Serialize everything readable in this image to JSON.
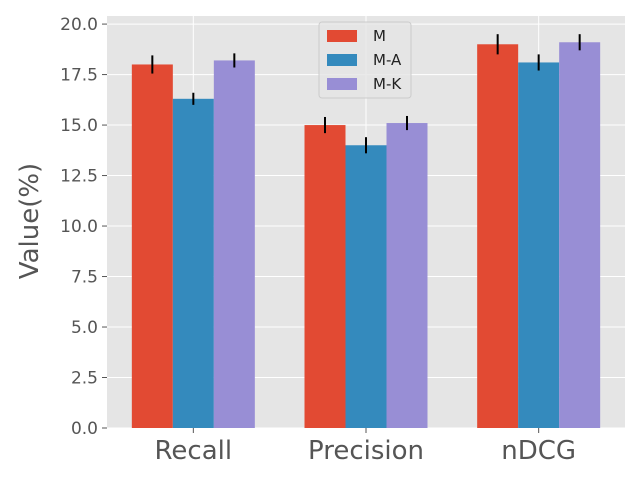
{
  "chart_data": {
    "type": "bar",
    "title": "",
    "xlabel": "",
    "ylabel": "Value(%)",
    "categories": [
      "Recall",
      "Precision",
      "nDCG"
    ],
    "series": [
      {
        "name": "M",
        "color": "#E24A33",
        "values": [
          18.0,
          15.0,
          19.0
        ],
        "errors": [
          0.45,
          0.4,
          0.5
        ]
      },
      {
        "name": "M-A",
        "color": "#348ABD",
        "values": [
          16.3,
          14.0,
          18.1
        ],
        "errors": [
          0.3,
          0.4,
          0.4
        ]
      },
      {
        "name": "M-K",
        "color": "#988ED5",
        "values": [
          18.2,
          15.1,
          19.1
        ],
        "errors": [
          0.35,
          0.35,
          0.4
        ]
      }
    ],
    "ylim": [
      0,
      20.4
    ],
    "yticks": [
      "0.0",
      "2.5",
      "5.0",
      "7.5",
      "10.0",
      "12.5",
      "15.0",
      "17.5",
      "20.0"
    ],
    "grid": true,
    "legend_position": "top-center",
    "background_color": "#E5E5E5",
    "grid_color": "#FFFFFF"
  }
}
